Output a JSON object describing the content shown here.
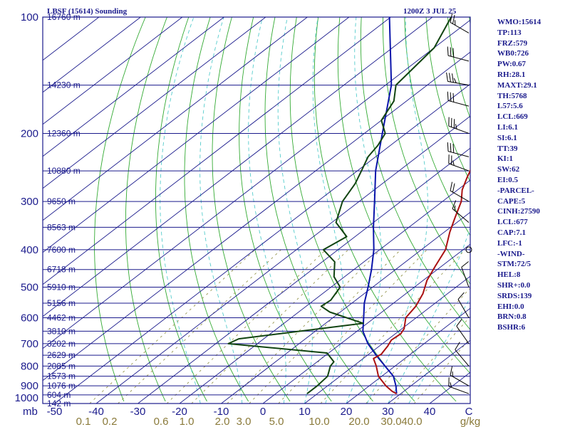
{
  "chart_data": {
    "type": "skew-t log-p sounding",
    "title_left": "LBSF (15614) Sounding",
    "title_right": "1200Z  3 JUL 25",
    "pressure_axis": {
      "labels": [
        "100",
        "200",
        "300",
        "400",
        "500",
        "600",
        "700",
        "800",
        "900",
        "1000"
      ],
      "values": [
        100,
        200,
        300,
        400,
        500,
        600,
        700,
        800,
        900,
        1000
      ],
      "unit": "mb"
    },
    "temperature_axis": {
      "unit_label": "mb",
      "labels": [
        "-50",
        "-40",
        "-30",
        "-20",
        "-10",
        "0",
        "10",
        "20",
        "30",
        "40"
      ],
      "values": [
        -50,
        -40,
        -30,
        -20,
        -10,
        0,
        10,
        20,
        30,
        40
      ],
      "end_label": "C",
      "range": [
        -50,
        50
      ]
    },
    "mixing_ratio_axis": {
      "labels": [
        "0.1",
        "0.2",
        "0.6",
        "1.0",
        "2.0",
        "3.0",
        "5.0",
        "10.0",
        "20.0",
        "30.0",
        "40.0"
      ],
      "values": [
        0.1,
        0.2,
        0.6,
        1.0,
        2.0,
        3.0,
        5.0,
        10.0,
        20.0,
        30.0,
        40.0
      ],
      "unit": "g/kg"
    },
    "height_levels": [
      {
        "pressure": 100,
        "height": "16760 m"
      },
      {
        "pressure": 150,
        "height": "14230 m"
      },
      {
        "pressure": 200,
        "height": "12360 m"
      },
      {
        "pressure": 250,
        "height": "10880 m"
      },
      {
        "pressure": 300,
        "height": "9650 m"
      },
      {
        "pressure": 350,
        "height": "8563 m"
      },
      {
        "pressure": 400,
        "height": "7600 m"
      },
      {
        "pressure": 450,
        "height": "6718 m"
      },
      {
        "pressure": 500,
        "height": "5910 m"
      },
      {
        "pressure": 550,
        "height": "5156 m"
      },
      {
        "pressure": 600,
        "height": "4462 m"
      },
      {
        "pressure": 650,
        "height": "3810 m"
      },
      {
        "pressure": 700,
        "height": "3202 m"
      },
      {
        "pressure": 750,
        "height": "2629 m"
      },
      {
        "pressure": 800,
        "height": "2085 m"
      },
      {
        "pressure": 850,
        "height": "1573 m"
      },
      {
        "pressure": 900,
        "height": "1076 m"
      },
      {
        "pressure": 950,
        "height": "604 m"
      },
      {
        "pressure": 1000,
        "height": "142 m"
      }
    ],
    "temperature_profile": {
      "pressure": [
        943,
        930,
        900,
        850,
        800,
        765,
        745,
        735,
        710,
        700,
        685,
        660,
        640,
        600,
        560,
        520,
        480,
        440,
        400,
        360,
        330,
        300,
        280,
        260,
        250,
        230,
        210,
        200,
        185,
        165,
        150,
        130,
        115,
        105,
        100
      ],
      "temperature": [
        29.0,
        27.2,
        24.0,
        19.2,
        15.5,
        12.5,
        13.0,
        12.7,
        12.0,
        11.6,
        11.0,
        11.3,
        10.5,
        7.5,
        6.3,
        4.1,
        0.9,
        -1.6,
        -4.2,
        -8.7,
        -12.0,
        -15.5,
        -18.9,
        -21.6,
        -22.9,
        -26.2,
        -28.5,
        -30.5,
        -33.8,
        -36.8,
        -40.0,
        -44.7,
        -48.1,
        -49.4,
        -52.0
      ]
    },
    "dewpoint_profile": {
      "pressure": [
        943,
        900,
        850,
        800,
        780,
        740,
        700,
        680,
        620,
        580,
        560,
        540,
        500,
        470,
        430,
        400,
        370,
        340,
        300,
        270,
        250,
        230,
        215,
        200,
        185,
        165,
        150,
        120,
        100
      ],
      "dewpoint": [
        7.5,
        7.5,
        7.0,
        4.5,
        4.0,
        -0.4,
        -27.0,
        -26.0,
        -1.0,
        -12.5,
        -16.4,
        -16.0,
        -17.8,
        -22.5,
        -27.0,
        -33.5,
        -32.0,
        -39.0,
        -44.0,
        -46.5,
        -49.0,
        -51.8,
        -53.0,
        -55.0,
        -60.0,
        -63.0,
        -67.5,
        -70.0,
        -75.5
      ]
    },
    "parcel_path": {
      "pressure": [
        943,
        900,
        850,
        800,
        750,
        700,
        650,
        600,
        550,
        500,
        450,
        400,
        350,
        300,
        250,
        200,
        150,
        100
      ],
      "temperature": [
        29.0,
        26.4,
        22.8,
        17.6,
        12.1,
        6.5,
        1.4,
        -2.6,
        -7.0,
        -11.1,
        -15.8,
        -21.4,
        -28.5,
        -36.3,
        -45.6,
        -55.7,
        -68.6,
        -90.3
      ]
    },
    "indices": [
      "WMO:15614",
      "TP:113",
      "FRZ:579",
      "WB0:726",
      "PW:0.67",
      "RH:28.1",
      "MAXT:29.1",
      "TH:5768",
      "L57:5.6",
      "LCL:669",
      "LI:6.1",
      "SI:6.1",
      "TT:39",
      "KI:1",
      "SW:62",
      "EI:0.5",
      "-PARCEL-",
      "CAPE:5",
      "CINH:27590",
      "LCL:677",
      "CAP:7.1",
      "LFC:-1",
      "-WIND-",
      "STM:72/5",
      "HEL:8",
      "SHR+:0.0",
      "SRDS:139",
      "EHI:0.0",
      "BRN:0.8",
      "BSHR:6"
    ],
    "wind_barbs": [
      {
        "pressure": 110,
        "dir": 300,
        "speed": 25
      },
      {
        "pressure": 130,
        "dir": 285,
        "speed": 30
      },
      {
        "pressure": 150,
        "dir": 280,
        "speed": 35
      },
      {
        "pressure": 170,
        "dir": 285,
        "speed": 30
      },
      {
        "pressure": 200,
        "dir": 290,
        "speed": 35
      },
      {
        "pressure": 230,
        "dir": 285,
        "speed": 30
      },
      {
        "pressure": 250,
        "dir": 290,
        "speed": 25
      },
      {
        "pressure": 300,
        "dir": 300,
        "speed": 20
      },
      {
        "pressure": 340,
        "dir": 310,
        "speed": 15
      },
      {
        "pressure": 400,
        "dir": 330,
        "speed": 0
      },
      {
        "pressure": 500,
        "dir": 340,
        "speed": 10
      },
      {
        "pressure": 600,
        "dir": 330,
        "speed": 10
      },
      {
        "pressure": 700,
        "dir": 325,
        "speed": 10
      },
      {
        "pressure": 800,
        "dir": 320,
        "speed": 10
      },
      {
        "pressure": 900,
        "dir": 300,
        "speed": 15
      },
      {
        "pressure": 943,
        "dir": 290,
        "speed": 15
      }
    ],
    "colors": {
      "frame": "#1a1a8c",
      "isobar": "#1a1a8c",
      "isotherm": "#1a1a8c",
      "dry_adiabat": "#33aa33",
      "moist_adiabat": "#55cccc",
      "mixing_ratio": "#8a8a3a",
      "temperature": "#aa1111",
      "dewpoint": "#114411",
      "parcel": "#0a14aa",
      "labels": "#1a1a8c",
      "mixing_labels": "#8a7a3a"
    }
  }
}
